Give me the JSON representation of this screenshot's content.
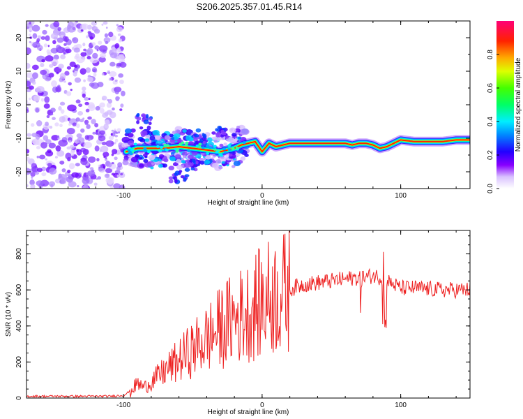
{
  "title": "S206.2025.357.01.45.R14",
  "colors": {
    "snr_line": "#ee2222",
    "spectrogram_background": "#ffffff"
  },
  "chart_data": [
    {
      "type": "heatmap",
      "name": "spectrogram",
      "xlabel": "Height of straight line (km)",
      "ylabel": "Frequency (Hz)",
      "xlim": [
        -170,
        150
      ],
      "ylim": [
        -25,
        25
      ],
      "xticks": [
        -100,
        0,
        100
      ],
      "xtick_labels": [
        "-100",
        "0",
        "100"
      ],
      "yticks": [
        20,
        10,
        0,
        -10,
        -20
      ],
      "ytick_labels": [
        "20",
        "10",
        "0",
        "-10",
        "-20"
      ],
      "noise_region_x": [
        -170,
        -100
      ],
      "ridge": {
        "x": [
          -98,
          -90,
          -80,
          -70,
          -60,
          -50,
          -40,
          -30,
          -20,
          -15,
          -10,
          -5,
          0,
          5,
          10,
          15,
          20,
          40,
          60,
          65,
          70,
          75,
          80,
          85,
          90,
          95,
          100,
          110,
          120,
          130,
          140,
          150
        ],
        "freq": [
          -14,
          -13,
          -13,
          -13,
          -12.5,
          -13,
          -13.5,
          -14,
          -13,
          -12,
          -11.5,
          -11,
          -14,
          -11.5,
          -12.5,
          -12,
          -11.5,
          -11.5,
          -11.5,
          -12,
          -11.5,
          -11.5,
          -12,
          -13,
          -12.5,
          -11.5,
          -10.5,
          -11,
          -11,
          -11,
          -10.5,
          -10.5
        ]
      },
      "colorbar": {
        "label": "Normalized spectral amplitude",
        "range": [
          0,
          1
        ],
        "ticks": [
          0,
          0.2,
          0.4,
          0.6,
          0.8
        ],
        "tick_labels": [
          "0.0",
          "0.2",
          "0.4",
          "0.6",
          "0.8"
        ]
      }
    },
    {
      "type": "line",
      "name": "snr",
      "xlabel": "Height of straight line (km)",
      "ylabel": "SNR (10 * v/v)",
      "xlim": [
        -170,
        150
      ],
      "ylim": [
        0,
        930
      ],
      "xticks": [
        -100,
        0,
        100
      ],
      "xtick_labels": [
        "-100",
        "0",
        "100"
      ],
      "yticks": [
        0,
        200,
        400,
        600,
        800
      ],
      "ytick_labels": [
        "0",
        "200",
        "400",
        "600",
        "800"
      ],
      "series": [
        {
          "name": "SNR",
          "x": [
            -170,
            -150,
            -130,
            -110,
            -100,
            -95,
            -90,
            -85,
            -80,
            -75,
            -70,
            -65,
            -60,
            -55,
            -50,
            -45,
            -40,
            -35,
            -30,
            -25,
            -20,
            -15,
            -10,
            -5,
            0,
            5,
            10,
            15,
            20,
            25,
            30,
            40,
            50,
            60,
            70,
            75,
            80,
            85,
            90,
            95,
            100,
            110,
            120,
            130,
            140,
            150
          ],
          "y": [
            10,
            10,
            10,
            10,
            15,
            40,
            80,
            60,
            90,
            120,
            150,
            180,
            210,
            240,
            270,
            300,
            330,
            360,
            390,
            420,
            440,
            460,
            480,
            510,
            530,
            560,
            570,
            580,
            600,
            620,
            630,
            640,
            650,
            660,
            670,
            670,
            680,
            670,
            650,
            630,
            610,
            610,
            605,
            600,
            600,
            600
          ]
        }
      ]
    }
  ]
}
